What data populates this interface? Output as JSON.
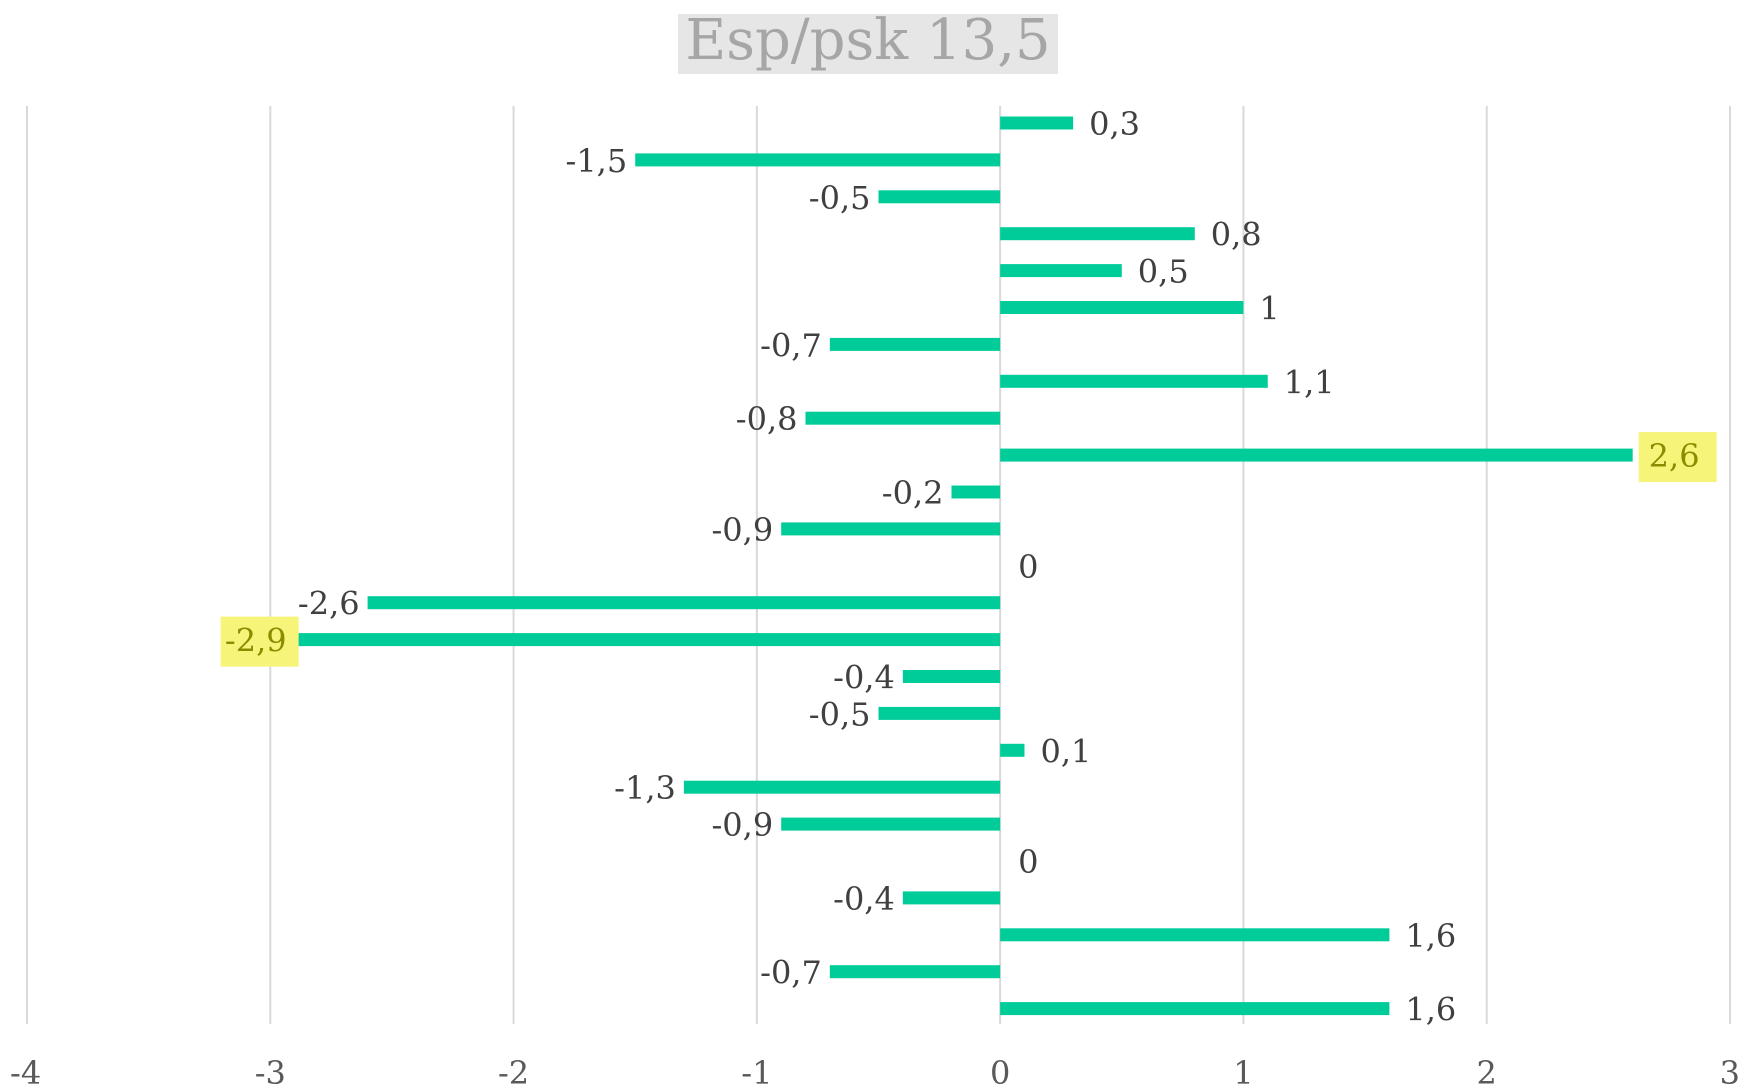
{
  "chart_data": {
    "type": "bar",
    "orientation": "horizontal",
    "title": "Esp/psk 13,5",
    "xlabel": "",
    "ylabel": "",
    "xlim": [
      -4,
      3
    ],
    "x_ticks": [
      -4,
      -3,
      -2,
      -1,
      0,
      1,
      2,
      3
    ],
    "x_tick_labels": [
      "-4",
      "-3",
      "-2",
      "-1",
      "0",
      "1",
      "2",
      "3"
    ],
    "grid": "vertical",
    "legend": "none",
    "bar_color": "#00cc99",
    "highlight_color": "#f7f47a",
    "values": [
      0.3,
      -1.5,
      -0.5,
      0.8,
      0.5,
      1,
      -0.7,
      1.1,
      -0.8,
      2.6,
      -0.2,
      -0.9,
      0,
      -2.6,
      -2.9,
      -0.4,
      -0.5,
      0.1,
      -1.3,
      -0.9,
      0,
      -0.4,
      1.6,
      -0.7,
      1.6
    ],
    "value_labels": [
      "0,3",
      "-1,5",
      "-0,5",
      "0,8",
      "0,5",
      "1",
      "-0,7",
      "1,1",
      "-0,8",
      "2,6",
      "-0,2",
      "-0,9",
      "0",
      "-2,6",
      "-2,9",
      "-0,4",
      "-0,5",
      "0,1",
      "-1,3",
      "-0,9",
      "0",
      "-0,4",
      "1,6",
      "-0,7",
      "1,6"
    ],
    "highlighted_values": [
      "2,6",
      "-2,9"
    ]
  }
}
